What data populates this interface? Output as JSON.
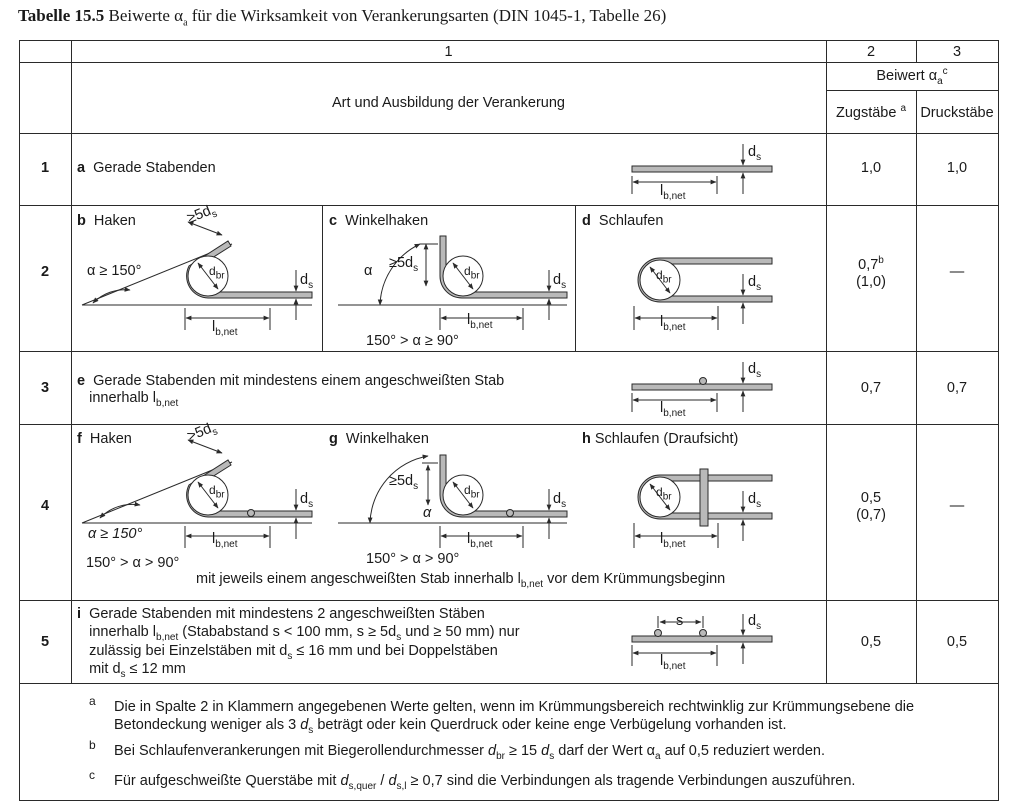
{
  "caption": {
    "prefix": "Tabelle 15.5",
    "text": "Beiwerte α",
    "text_sub": "a",
    "text_rest": " für die Wirksamkeit von Verankerungsarten (DIN 1045-1, Tabelle 26)"
  },
  "header": {
    "col1": "1",
    "col2": "2",
    "col3": "3",
    "beiwert": "Beiwert α",
    "beiwert_sub": "a",
    "beiwert_sup": "c",
    "art": "Art und Ausbildung der Verankerung",
    "zug": "Zugstäbe",
    "zug_sup": "a",
    "druck": "Druckstäbe"
  },
  "rows": [
    {
      "num": "1",
      "letter": "a",
      "text": "Gerade Stabenden",
      "zug": "1,0",
      "druck": "1,0"
    },
    {
      "num": "2",
      "b_letter": "b",
      "b_text": "Haken",
      "c_letter": "c",
      "c_text": "Winkelhaken",
      "d_letter": "d",
      "d_text": "Schlaufen",
      "alpha_b": "α ≥ 150°",
      "alpha_c_range": "150° > α ≥ 90°",
      "zug": "0,7",
      "zug_sup": "b",
      "zug2": "(1,0)",
      "druck": "—"
    },
    {
      "num": "3",
      "letter": "e",
      "line1": "Gerade Stabenden mit mindestens einem angeschweißten Stab",
      "line2": "innerhalb l",
      "line2_sub": "b,net",
      "zug": "0,7",
      "druck": "0,7"
    },
    {
      "num": "4",
      "f_letter": "f",
      "f_text": "Haken",
      "g_letter": "g",
      "g_text": "Winkelhaken",
      "h_letter": "h",
      "h_text": "Schlaufen (Draufsicht)",
      "alpha_f": "α ≥ 150°",
      "alpha_f_range": "150° > α > 90°",
      "alpha_g_range": "150° > α > 90°",
      "note_pre": "mit jeweils einem angeschweißten Stab innerhalb l",
      "note_sub": "b,net",
      "note_post": " vor dem Krümmungsbeginn",
      "zug": "0,5",
      "zug2": "(0,7)",
      "druck": "—"
    },
    {
      "num": "5",
      "letter": "i",
      "l1": "Gerade Stabenden mit mindestens 2 angeschweißten Stäben",
      "l2a": "innerhalb l",
      "l2sub": "b,net",
      "l2b": " (Stababstand s < 100 mm, s  ≥ 5d",
      "l2sub2": "s",
      "l2c": " und ≥ 50 mm) nur",
      "l3a": "zulässig bei Einzelstäben mit d",
      "l3sub": "s",
      "l3b": " ≤ 16 mm und bei Doppelstäben",
      "l4a": "mit d",
      "l4sub": "s",
      "l4b": " ≤ 12 mm",
      "zug": "0,5",
      "druck": "0,5"
    }
  ],
  "diagram_labels": {
    "ds": "d",
    "ds_sub": "s",
    "lb": "l",
    "lb_sub": "b,net",
    "dbr": "d",
    "dbr_sub": "br",
    "ge5ds": "≥5d",
    "gt5ds": ">5d",
    "alpha": "α",
    "s": "s"
  },
  "footnotes": [
    {
      "mark": "a",
      "line1": "Die in Spalte 2 in Klammern angegebenen Werte gelten, wenn im Krümmungsbereich rechtwinklig zur Krümmungsebene die",
      "line2a": "Betondeckung weniger als 3 ",
      "line2var": "d",
      "line2sub": "s",
      "line2b": " beträgt oder kein Querdruck oder keine enge Verbügelung vorhanden ist."
    },
    {
      "mark": "b",
      "a": "Bei Schlaufenverankerungen mit Biegerollendurchmesser ",
      "var": "d",
      "sub": "br",
      "b": " ≥ 15 ",
      "var2": "d",
      "sub2": "s",
      "c": " darf der Wert α",
      "sub3": "a",
      "d": " auf 0,5 reduziert werden."
    },
    {
      "mark": "c",
      "a": "Für aufgeschweißte Querstäbe mit ",
      "var": "d",
      "sub": "s,quer",
      "b": " / ",
      "var2": "d",
      "sub2": "s,l",
      "c": "  ≥  0,7 sind die Verbindungen als tragende Verbindungen auszuführen."
    }
  ],
  "colors": {
    "bar_fill": "#b9b9b9",
    "line": "#2a2a2a"
  }
}
